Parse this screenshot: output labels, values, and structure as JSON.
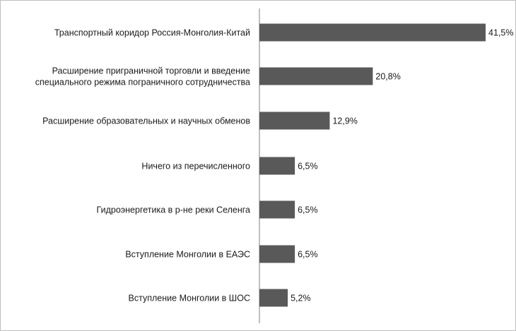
{
  "chart_data": {
    "type": "bar",
    "orientation": "horizontal",
    "title": "",
    "xlabel": "",
    "ylabel": "",
    "categories": [
      [
        "Транспортный коридор  Россия-Монголия-Китай"
      ],
      [
        "Расширение приграничной торговли и введение",
        "специального режима пограничного сотрудничества"
      ],
      [
        "Расширение образовательных и научных обменов"
      ],
      [
        "Ничего из перечисленного"
      ],
      [
        "Гидроэнергетика в р-не реки  Селенга"
      ],
      [
        "Вступление Монголии в ЕАЭС"
      ],
      [
        "Вступление Монголии в ШОС"
      ]
    ],
    "values": [
      41.5,
      20.8,
      12.9,
      6.5,
      6.5,
      6.5,
      5.2
    ],
    "value_labels": [
      "41,5%",
      "20,8%",
      "12,9%",
      "6,5%",
      "6,5%",
      "6,5%",
      "5,2%"
    ],
    "xlim": [
      0,
      41.5
    ],
    "grid": false,
    "legend": "none",
    "bar_color": "#595959"
  }
}
